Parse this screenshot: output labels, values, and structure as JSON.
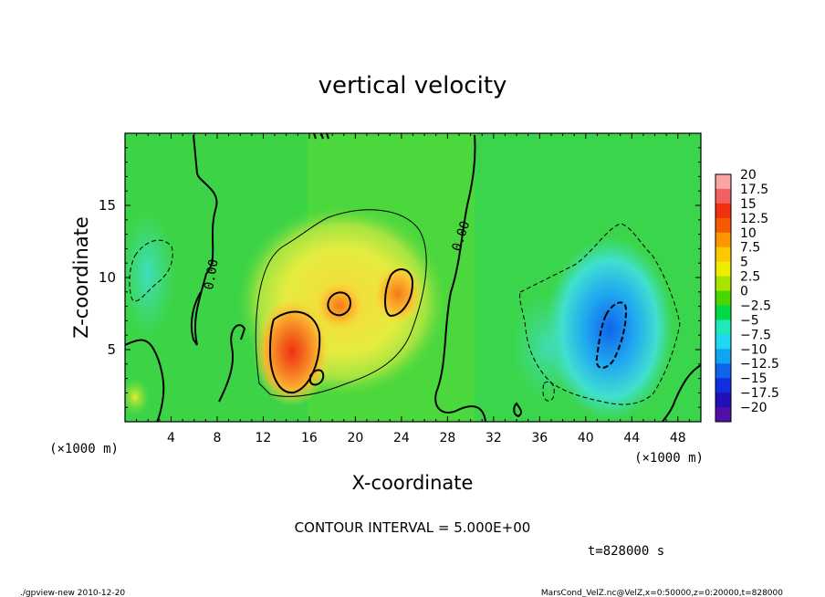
{
  "chart_data": {
    "type": "heatmap",
    "title": "vertical velocity",
    "xlabel": "X-coordinate",
    "ylabel": "Z-coordinate",
    "x_unit": "(×1000 m)",
    "y_unit": "(×1000 m)",
    "xlim": [
      0,
      50
    ],
    "ylim": [
      0,
      20
    ],
    "x_ticks": [
      "4",
      "8",
      "12",
      "16",
      "20",
      "24",
      "28",
      "32",
      "36",
      "40",
      "44",
      "48"
    ],
    "y_ticks": [
      "5",
      "10",
      "15"
    ],
    "contour_label": "0.00",
    "contour_interval_text": "CONTOUR INTERVAL = 5.000E+00",
    "time_text": "t=828000 s",
    "colorbar": {
      "labels": [
        "20",
        "17.5",
        "15",
        "12.5",
        "10",
        "7.5",
        "5",
        "2.5",
        "0",
        "−2.5",
        "−5",
        "−7.5",
        "−10",
        "−12.5",
        "−15",
        "−17.5",
        "−20"
      ],
      "colors": [
        "#f9a5a5",
        "#f26060",
        "#f03010",
        "#f45a00",
        "#fa9600",
        "#fcc800",
        "#f0ec00",
        "#a8e400",
        "#48d800",
        "#00d844",
        "#20e8b8",
        "#20d8f0",
        "#10a4f4",
        "#1064ec",
        "#1030e0",
        "#2010b8",
        "#5010a8"
      ]
    },
    "features": [
      {
        "kind": "updraft",
        "x": 14.3,
        "z": 4.8,
        "w": 17
      },
      {
        "kind": "updraft",
        "x": 18.5,
        "z": 8.3,
        "w": 11
      },
      {
        "kind": "updraft",
        "x": 23.0,
        "z": 9.0,
        "w": 11
      },
      {
        "kind": "downdraft",
        "x": 42.5,
        "z": 6.5,
        "w": -11
      }
    ]
  },
  "footer": {
    "left": "./gpview-new   2010-12-20",
    "right": "MarsCond_VelZ.nc@VelZ,x=0:50000,z=0:20000,t=828000"
  }
}
